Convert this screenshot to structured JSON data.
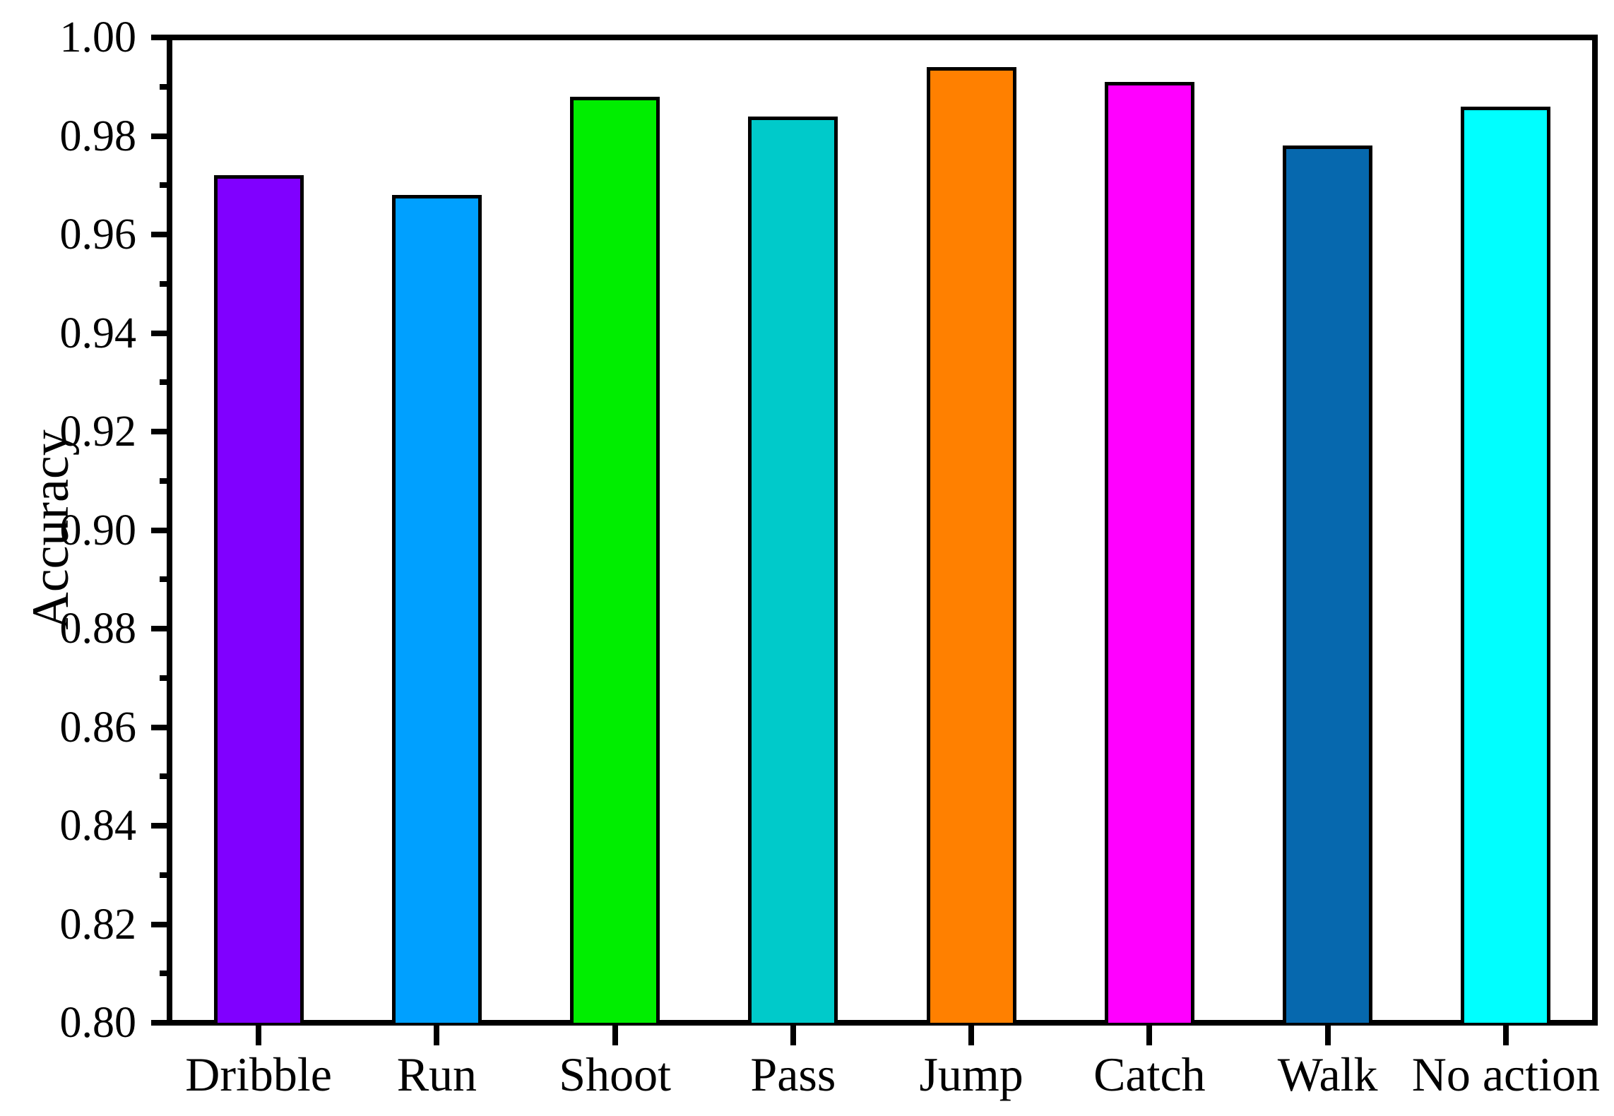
{
  "chart_data": {
    "type": "bar",
    "title": "",
    "xlabel": "",
    "ylabel": "Accuracy",
    "categories": [
      "Dribble",
      "Run",
      "Shoot",
      "Pass",
      "Jump",
      "Catch",
      "Walk",
      "No action"
    ],
    "values": [
      0.972,
      0.968,
      0.988,
      0.984,
      0.994,
      0.991,
      0.978,
      0.986
    ],
    "colors": [
      "#8000FF",
      "#00A0FF",
      "#00EE00",
      "#00CACA",
      "#FF8000",
      "#FF00FF",
      "#0668AE",
      "#00FFFF"
    ],
    "bar_edge_color": "#000000",
    "axis_color": "#000000",
    "background_color": "#FFFFFF",
    "ylim": [
      0.8,
      1.0
    ],
    "y_major_step": 0.02,
    "y_minor_step": 0.01,
    "y_tick_labels": [
      "0.80",
      "0.82",
      "0.84",
      "0.86",
      "0.88",
      "0.90",
      "0.92",
      "0.94",
      "0.96",
      "0.98",
      "1.00"
    ],
    "grid": false,
    "legend": "none"
  }
}
